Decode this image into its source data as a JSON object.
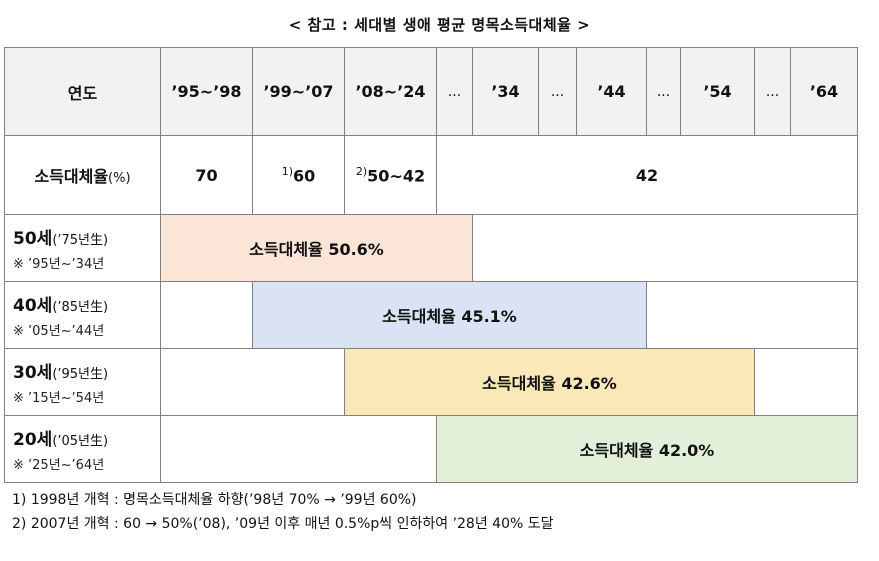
{
  "title": "< 참고 : 세대별 생애 평균 명목소득대체율 >",
  "header": {
    "year_label": "연도",
    "periods": [
      "’95~’98",
      "’99~’07",
      "’08~’24",
      "...",
      "’34",
      "...",
      "’44",
      "...",
      "’54",
      "...",
      "’64"
    ]
  },
  "rate_row": {
    "label": "소득대체율",
    "unit": "(%)",
    "v1": "70",
    "v2_note": "1)",
    "v2": "60",
    "v3_note": "2)",
    "v3": "50~42",
    "v4": "42"
  },
  "generations": [
    {
      "age": "50세",
      "birth": "(’75년生)",
      "span": "※ ’95년~’34년",
      "bar": "소득대체율  50.6%"
    },
    {
      "age": "40세",
      "birth": "(’85년生)",
      "span": "※ ’05년~’44년",
      "bar": "소득대체율  45.1%"
    },
    {
      "age": "30세",
      "birth": "(’95년生)",
      "span": "※ ’15년~’54년",
      "bar": "소득대체율  42.6%"
    },
    {
      "age": "20세",
      "birth": "(’05년生)",
      "span": "※ ’25년~’64년",
      "bar": "소득대체율  42.0%"
    }
  ],
  "notes": [
    "1) 1998년 개혁 : 명목소득대체율 하향(’98년 70% → ’99년 60%)",
    "2) 2007년 개혁 : 60 → 50%(’08), ’09년 이후 매년 0.5%p씩 인하하여 ’28년 40% 도달"
  ],
  "colors": {
    "gen50": "#fbe5d6",
    "gen40": "#dae3f3",
    "gen30": "#fbe8b9",
    "gen20": "#e2efd9",
    "header_bg": "#f2f2f2"
  }
}
